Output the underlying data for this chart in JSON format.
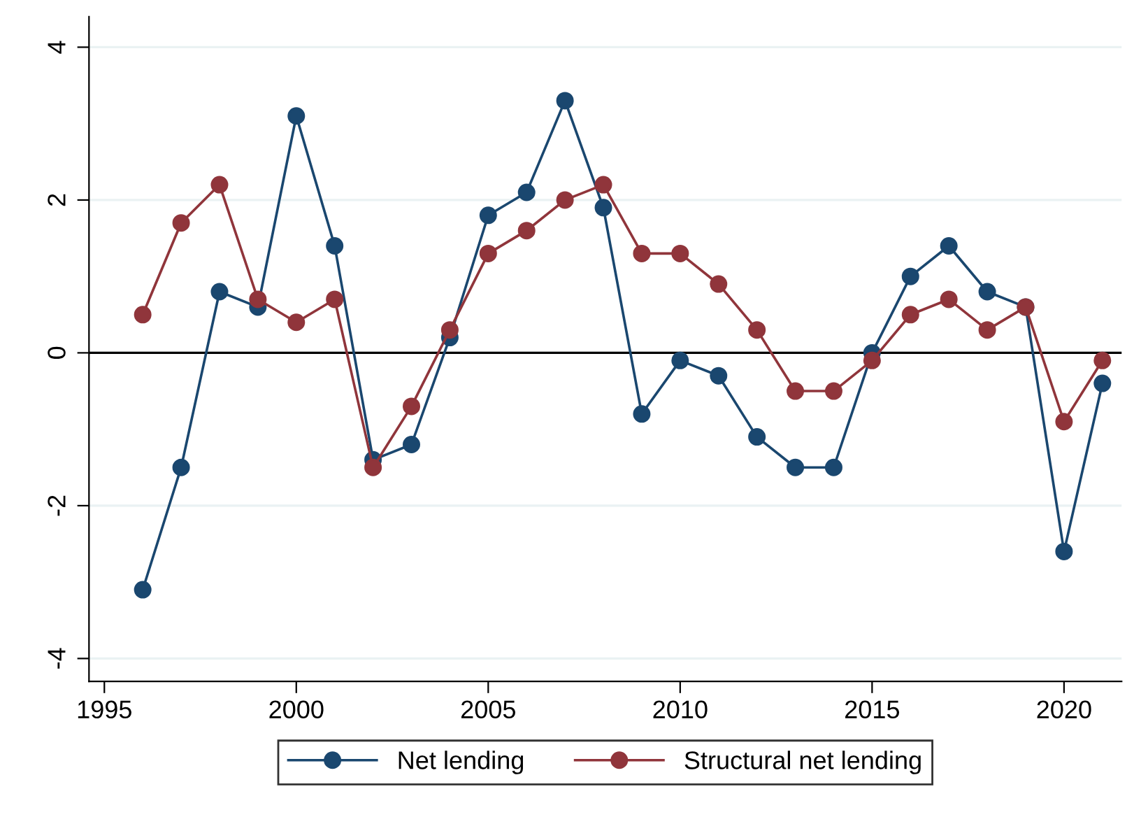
{
  "chart_data": {
    "type": "line",
    "x": [
      1996,
      1997,
      1998,
      1999,
      2000,
      2001,
      2002,
      2003,
      2004,
      2005,
      2006,
      2007,
      2008,
      2009,
      2010,
      2011,
      2012,
      2013,
      2014,
      2015,
      2016,
      2017,
      2018,
      2019,
      2020,
      2021
    ],
    "series": [
      {
        "name": "Net lending",
        "color": "#1a476f",
        "values": [
          -3.1,
          -1.5,
          0.8,
          0.6,
          3.1,
          1.4,
          -1.4,
          -1.2,
          0.2,
          1.8,
          2.1,
          3.3,
          1.9,
          -0.8,
          -0.1,
          -0.3,
          -1.1,
          -1.5,
          -1.5,
          0.0,
          1.0,
          1.4,
          0.8,
          0.6,
          -2.6,
          -0.4
        ]
      },
      {
        "name": "Structural net lending",
        "color": "#90353b",
        "values": [
          0.5,
          1.7,
          2.2,
          0.7,
          0.4,
          0.7,
          -1.5,
          -0.7,
          0.3,
          1.3,
          1.6,
          2.0,
          2.2,
          1.3,
          1.3,
          0.9,
          0.3,
          -0.5,
          -0.5,
          -0.1,
          0.5,
          0.7,
          0.3,
          0.6,
          -0.9,
          -0.1
        ]
      }
    ],
    "xlim": [
      1994.6,
      2021.5
    ],
    "xticks": [
      1995,
      2000,
      2005,
      2010,
      2015,
      2020
    ],
    "ylim": [
      -4.3,
      4.4
    ],
    "yticks": [
      -4,
      -2,
      0,
      2,
      4
    ],
    "ref_lines": [
      {
        "axis": "y",
        "value": 0,
        "color": "#000000"
      }
    ],
    "grid": "y",
    "legend": "bottom",
    "marker": "circle",
    "line_style": "solid"
  }
}
